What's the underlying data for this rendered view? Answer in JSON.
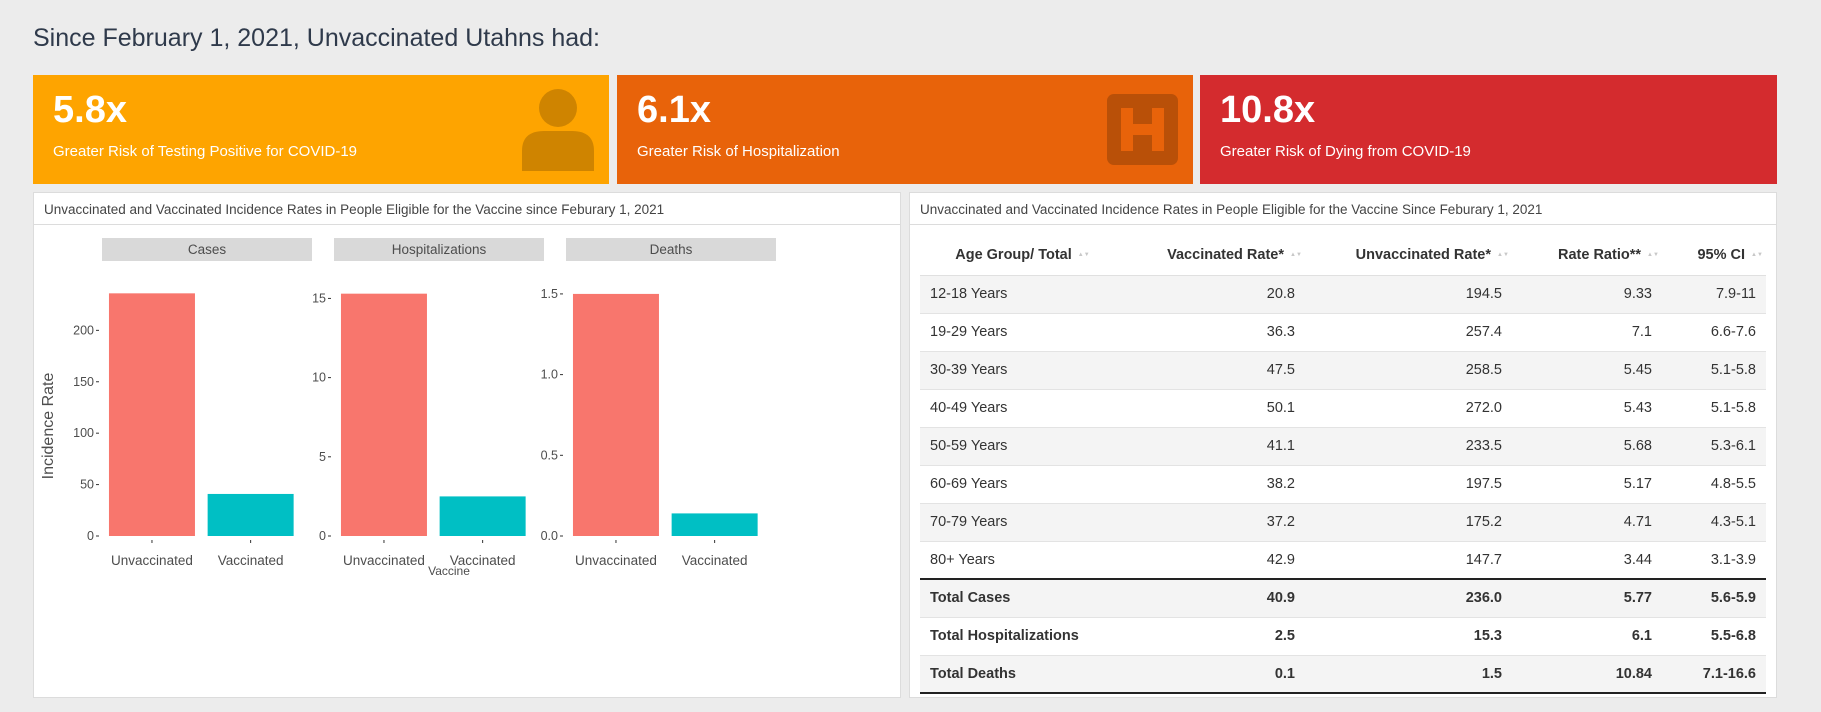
{
  "heading": "Since February 1, 2021, Unvaccinated Utahns had:",
  "cards": [
    {
      "value": "5.8x",
      "label": "Greater Risk of Testing Positive for COVID-19",
      "color": "#fea400",
      "icon": "person-icon"
    },
    {
      "value": "6.1x",
      "label": "Greater Risk of Hospitalization",
      "color": "#e8630a",
      "icon": "hospital-icon"
    },
    {
      "value": "10.8x",
      "label": "Greater Risk of Dying from COVID-19",
      "color": "#d42b2e",
      "icon": ""
    }
  ],
  "chart_panel": {
    "title": "Unvaccinated and Vaccinated Incidence Rates in People Eligible for the Vaccine since Feburary 1, 2021"
  },
  "chart_data": {
    "type": "bar",
    "ylabel": "Incidence Rate",
    "xlabel": "Vaccine",
    "categories": [
      "Unvaccinated",
      "Vaccinated"
    ],
    "colors": [
      "#f8766d",
      "#00bfc4"
    ],
    "facets": [
      {
        "name": "Cases",
        "values": [
          236.0,
          40.9
        ],
        "ylim": [
          0,
          248
        ],
        "ticks": [
          0,
          50,
          100,
          150,
          200
        ],
        "tick_labels": [
          "0",
          "50",
          "100",
          "150",
          "200"
        ]
      },
      {
        "name": "Hospitalizations",
        "values": [
          15.3,
          2.5
        ],
        "ylim": [
          0,
          16.1
        ],
        "ticks": [
          0,
          5,
          10,
          15
        ],
        "tick_labels": [
          "0",
          "5",
          "10",
          "15"
        ]
      },
      {
        "name": "Deaths",
        "values": [
          1.5,
          0.14
        ],
        "ylim": [
          0,
          1.58
        ],
        "ticks": [
          0,
          0.5,
          1.0,
          1.5
        ],
        "tick_labels": [
          "0.0",
          "0.5",
          "1.0",
          "1.5"
        ]
      }
    ]
  },
  "table_panel": {
    "title": "Unvaccinated and Vaccinated Incidence Rates in People Eligible for the Vaccine Since Feburary 1, 2021",
    "columns": [
      "Age Group/ Total",
      "Vaccinated Rate*",
      "Unvaccinated Rate*",
      "Rate Ratio**",
      "95% CI"
    ],
    "rows": [
      [
        "12-18 Years",
        "20.8",
        "194.5",
        "9.33",
        "7.9-11"
      ],
      [
        "19-29 Years",
        "36.3",
        "257.4",
        "7.1",
        "6.6-7.6"
      ],
      [
        "30-39 Years",
        "47.5",
        "258.5",
        "5.45",
        "5.1-5.8"
      ],
      [
        "40-49 Years",
        "50.1",
        "272.0",
        "5.43",
        "5.1-5.8"
      ],
      [
        "50-59 Years",
        "41.1",
        "233.5",
        "5.68",
        "5.3-6.1"
      ],
      [
        "60-69 Years",
        "38.2",
        "197.5",
        "5.17",
        "4.8-5.5"
      ],
      [
        "70-79 Years",
        "37.2",
        "175.2",
        "4.71",
        "4.3-5.1"
      ],
      [
        "80+ Years",
        "42.9",
        "147.7",
        "3.44",
        "3.1-3.9"
      ]
    ],
    "totals": [
      [
        "Total Cases",
        "40.9",
        "236.0",
        "5.77",
        "5.6-5.9"
      ],
      [
        "Total Hospitalizations",
        "2.5",
        "15.3",
        "6.1",
        "5.5-6.8"
      ],
      [
        "Total Deaths",
        "0.1",
        "1.5",
        "10.84",
        "7.1-16.6"
      ]
    ]
  }
}
